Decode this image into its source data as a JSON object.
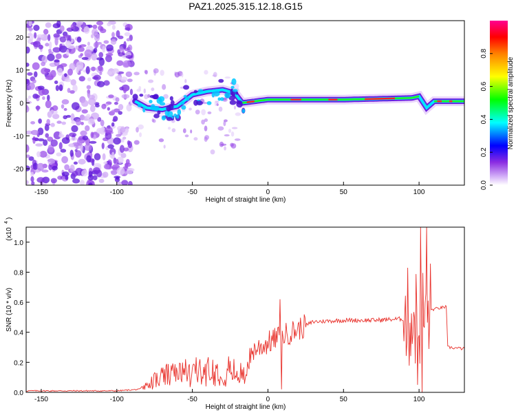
{
  "title": "PAZ1.2025.315.12.18.G15",
  "chart_data": [
    {
      "type": "heatmap",
      "panel": "spectrogram",
      "xlabel": "Height of straight line (km)",
      "ylabel": "Frequency (Hz)",
      "xlim": [
        -160,
        130
      ],
      "ylim": [
        -25,
        25
      ],
      "xticks": [
        -150,
        -100,
        -50,
        0,
        50,
        100
      ],
      "yticks": [
        -20,
        -10,
        0,
        10,
        20
      ],
      "tracked_line": [
        {
          "x": -88,
          "f": 0.5
        },
        {
          "x": -80,
          "f": -1.5
        },
        {
          "x": -70,
          "f": -2.0
        },
        {
          "x": -60,
          "f": -1.0
        },
        {
          "x": -50,
          "f": 2.5
        },
        {
          "x": -40,
          "f": 3.5
        },
        {
          "x": -30,
          "f": 4.0
        },
        {
          "x": -22,
          "f": 3.0
        },
        {
          "x": -17,
          "f": 0.0
        },
        {
          "x": 0,
          "f": 1.0
        },
        {
          "x": 10,
          "f": 1.0
        },
        {
          "x": 50,
          "f": 1.0
        },
        {
          "x": 95,
          "f": 1.5
        },
        {
          "x": 100,
          "f": 2.0
        },
        {
          "x": 105,
          "f": -1.5
        },
        {
          "x": 110,
          "f": 0.5
        },
        {
          "x": 130,
          "f": 0.5
        }
      ],
      "colorbar": {
        "label": "Normalized spectral amplitude",
        "range": [
          0,
          1
        ],
        "ticks": [
          "0.0",
          "0.2",
          "0.4",
          "0.6",
          "0.8"
        ]
      }
    },
    {
      "type": "line",
      "panel": "snr",
      "xlabel": "Height of straight line (km)",
      "ylabel": "SNR (10 * v/v)",
      "y_multiplier_label": "(x10",
      "y_multiplier_exp": "4",
      "xlim": [
        -160,
        130
      ],
      "ylim": [
        0,
        1.1
      ],
      "xticks": [
        -150,
        -100,
        -50,
        0,
        50,
        100
      ],
      "yticks": [
        0.0,
        0.2,
        0.4,
        0.6,
        0.8,
        1.0
      ],
      "color": "#e8302a",
      "envelope": [
        {
          "x": -160,
          "y": 0.01
        },
        {
          "x": -100,
          "y": 0.01
        },
        {
          "x": -85,
          "y": 0.02
        },
        {
          "x": -78,
          "y": 0.08
        },
        {
          "x": -70,
          "y": 0.14
        },
        {
          "x": -55,
          "y": 0.17
        },
        {
          "x": -40,
          "y": 0.19
        },
        {
          "x": -25,
          "y": 0.19
        },
        {
          "x": -15,
          "y": 0.14
        },
        {
          "x": -10,
          "y": 0.28
        },
        {
          "x": 0,
          "y": 0.33
        },
        {
          "x": 10,
          "y": 0.38
        },
        {
          "x": 20,
          "y": 0.42
        },
        {
          "x": 30,
          "y": 0.47
        },
        {
          "x": 50,
          "y": 0.48
        },
        {
          "x": 70,
          "y": 0.48
        },
        {
          "x": 90,
          "y": 0.49
        },
        {
          "x": 100,
          "y": 0.5
        },
        {
          "x": 108,
          "y": 0.55
        },
        {
          "x": 118,
          "y": 0.57
        },
        {
          "x": 119,
          "y": 0.3
        },
        {
          "x": 130,
          "y": 0.29
        }
      ],
      "peaks": [
        {
          "x": 8,
          "y": 0.62
        },
        {
          "x": 9,
          "y": 0.02
        },
        {
          "x": 101,
          "y": 1.1
        },
        {
          "x": 105,
          "y": 1.1
        },
        {
          "x": 102,
          "y": 0.0
        },
        {
          "x": 99,
          "y": 0.05
        }
      ]
    }
  ]
}
